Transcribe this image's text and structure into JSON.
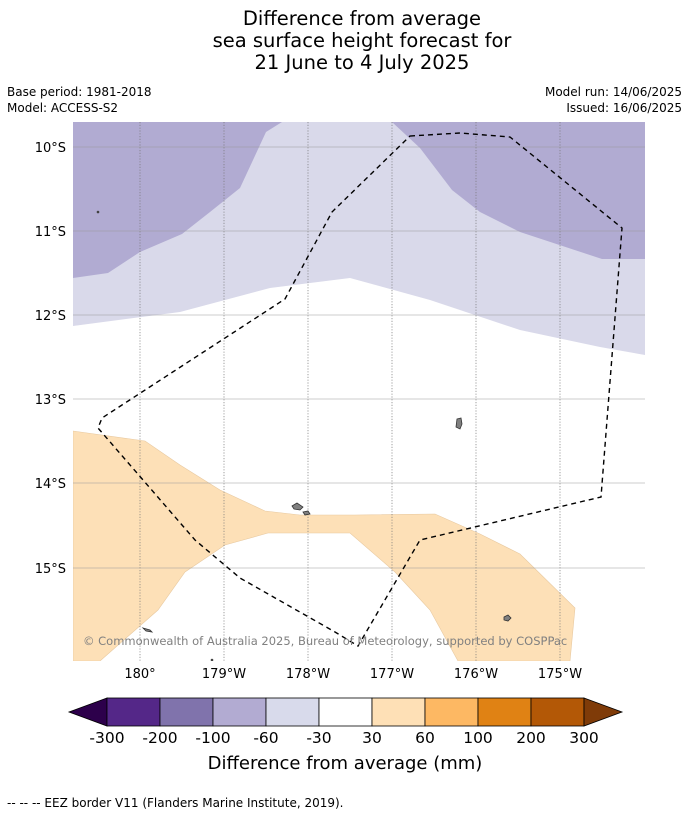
{
  "title_lines": [
    "Difference from average",
    "sea surface height forecast for",
    "21 June to 4 July 2025"
  ],
  "base_period": "Base period: 1981-2018",
  "model": "Model: ACCESS-S2",
  "model_run": "Model run: 14/06/2025",
  "issued": "Issued: 16/06/2025",
  "map": {
    "lat_labels": [
      "10°S",
      "11°S",
      "12°S",
      "13°S",
      "14°S",
      "15°S"
    ],
    "lon_labels": [
      "180°",
      "179°W",
      "178°W",
      "177°W",
      "176°W",
      "175°W"
    ],
    "copyright": "© Commonwealth of Australia 2025, Bureau of Meteorology, supported by COSPPac",
    "eez_line_style": "dashed",
    "field_colors": {
      "-200 to -100": "#b1abd2",
      "-60 to -30": "#d9d9ea",
      "-30 to 30": "#ffffff",
      "30 to 60": "#fde0b7"
    },
    "land_color": "#808080"
  },
  "colorbar": {
    "ticks": [
      "-300",
      "-200",
      "-100",
      "-60",
      "-30",
      "30",
      "60",
      "100",
      "200",
      "300"
    ],
    "colors": [
      "#2d004b",
      "#542788",
      "#8073ac",
      "#b2abd2",
      "#d8daeb",
      "#ffffff",
      "#fee0b6",
      "#fdb863",
      "#e08214",
      "#b35806",
      "#7f3b08"
    ],
    "label": "Difference from average (mm)"
  },
  "footnote": "--  --  -- EEZ border V11 (Flanders Marine Institute, 2019)."
}
